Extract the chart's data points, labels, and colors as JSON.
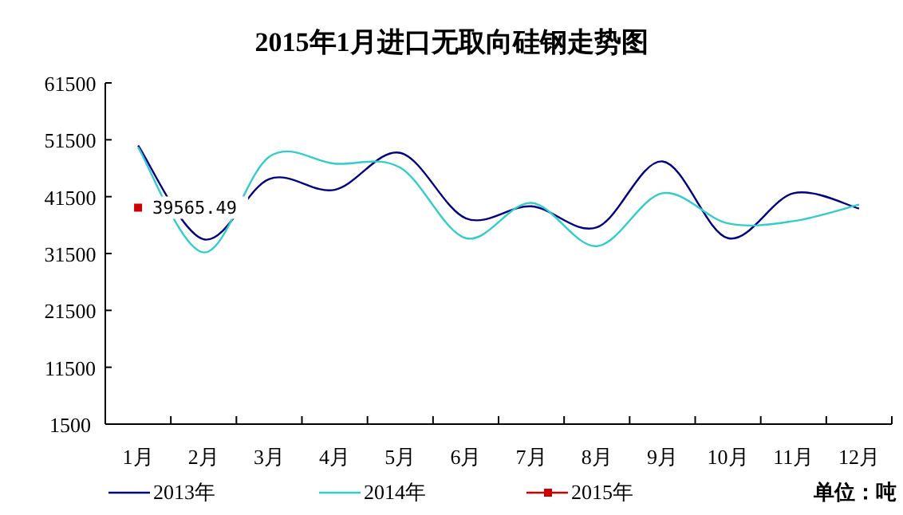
{
  "chart_data": {
    "type": "line",
    "title": "2015年1月进口无取向硅钢走势图",
    "categories": [
      "1月",
      "2月",
      "3月",
      "4月",
      "5月",
      "6月",
      "7月",
      "8月",
      "9月",
      "10月",
      "11月",
      "12月"
    ],
    "series": [
      {
        "name": "2013年",
        "color": "#000080",
        "marker": "none",
        "values": [
          50500,
          34000,
          44600,
          42700,
          49200,
          37700,
          39800,
          36100,
          47700,
          34200,
          42100,
          39400
        ]
      },
      {
        "name": "2014年",
        "color": "#33cccc",
        "marker": "none",
        "values": [
          50200,
          31700,
          48500,
          47300,
          46600,
          34200,
          40400,
          32800,
          42100,
          36800,
          37200,
          40100
        ]
      },
      {
        "name": "2015年",
        "color": "#cc0000",
        "marker": "square",
        "values": [
          39565.49,
          null,
          null,
          null,
          null,
          null,
          null,
          null,
          null,
          null,
          null,
          null
        ],
        "value_labels": [
          "39565.49",
          null,
          null,
          null,
          null,
          null,
          null,
          null,
          null,
          null,
          null,
          null
        ]
      }
    ],
    "ylim": [
      1500,
      61500
    ],
    "yticks": [
      1500,
      11500,
      21500,
      31500,
      41500,
      51500,
      61500
    ],
    "grid": false,
    "legend": "bottom",
    "annotations": [
      "单位：吨"
    ]
  }
}
